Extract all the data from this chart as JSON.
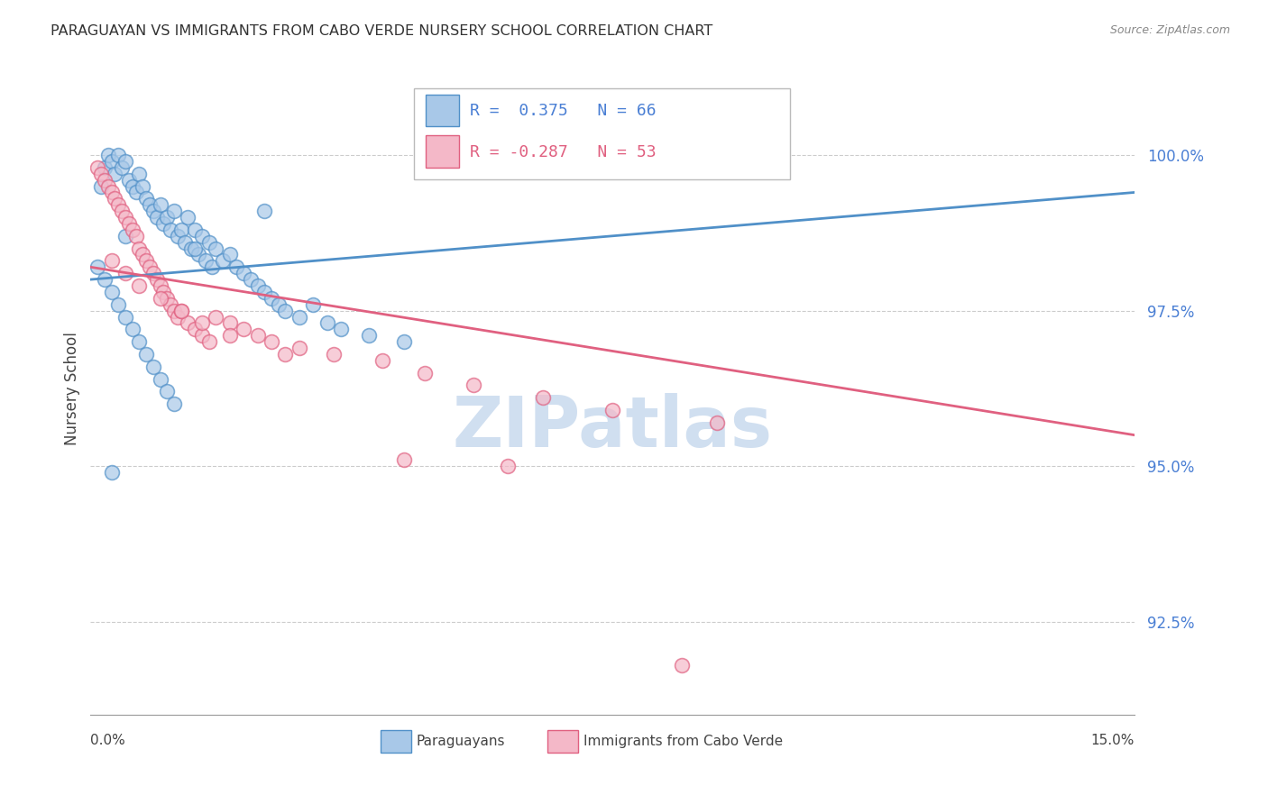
{
  "title": "PARAGUAYAN VS IMMIGRANTS FROM CABO VERDE NURSERY SCHOOL CORRELATION CHART",
  "source": "Source: ZipAtlas.com",
  "ylabel": "Nursery School",
  "ytick_values": [
    92.5,
    95.0,
    97.5,
    100.0
  ],
  "xlim": [
    0.0,
    15.0
  ],
  "ylim": [
    91.0,
    101.5
  ],
  "legend_blue_r": "0.375",
  "legend_blue_n": "66",
  "legend_pink_r": "-0.287",
  "legend_pink_n": "53",
  "blue_face_color": "#a8c8e8",
  "blue_edge_color": "#5090c8",
  "pink_face_color": "#f4b8c8",
  "pink_edge_color": "#e06080",
  "blue_line_color": "#5090c8",
  "pink_line_color": "#e06080",
  "watermark": "ZIPatlas",
  "watermark_color": "#d0dff0",
  "blue_scatter_x": [
    0.15,
    0.2,
    0.25,
    0.3,
    0.35,
    0.4,
    0.45,
    0.5,
    0.55,
    0.6,
    0.65,
    0.7,
    0.75,
    0.8,
    0.85,
    0.9,
    0.95,
    1.0,
    1.05,
    1.1,
    1.15,
    1.2,
    1.25,
    1.3,
    1.35,
    1.4,
    1.45,
    1.5,
    1.55,
    1.6,
    1.65,
    1.7,
    1.75,
    1.8,
    1.9,
    2.0,
    2.1,
    2.2,
    2.3,
    2.4,
    2.5,
    2.6,
    2.7,
    2.8,
    3.0,
    3.2,
    3.4,
    3.6,
    4.0,
    4.5,
    0.1,
    0.2,
    0.3,
    0.4,
    0.5,
    0.6,
    0.7,
    0.8,
    0.9,
    1.0,
    1.1,
    1.2,
    0.5,
    1.5,
    2.5,
    0.3
  ],
  "blue_scatter_y": [
    99.5,
    99.8,
    100.0,
    99.9,
    99.7,
    100.0,
    99.8,
    99.9,
    99.6,
    99.5,
    99.4,
    99.7,
    99.5,
    99.3,
    99.2,
    99.1,
    99.0,
    99.2,
    98.9,
    99.0,
    98.8,
    99.1,
    98.7,
    98.8,
    98.6,
    99.0,
    98.5,
    98.8,
    98.4,
    98.7,
    98.3,
    98.6,
    98.2,
    98.5,
    98.3,
    98.4,
    98.2,
    98.1,
    98.0,
    97.9,
    97.8,
    97.7,
    97.6,
    97.5,
    97.4,
    97.6,
    97.3,
    97.2,
    97.1,
    97.0,
    98.2,
    98.0,
    97.8,
    97.6,
    97.4,
    97.2,
    97.0,
    96.8,
    96.6,
    96.4,
    96.2,
    96.0,
    98.7,
    98.5,
    99.1,
    94.9
  ],
  "pink_scatter_x": [
    0.1,
    0.15,
    0.2,
    0.25,
    0.3,
    0.35,
    0.4,
    0.45,
    0.5,
    0.55,
    0.6,
    0.65,
    0.7,
    0.75,
    0.8,
    0.85,
    0.9,
    0.95,
    1.0,
    1.05,
    1.1,
    1.15,
    1.2,
    1.25,
    1.3,
    1.4,
    1.5,
    1.6,
    1.7,
    1.8,
    2.0,
    2.2,
    2.4,
    2.6,
    3.0,
    3.5,
    4.2,
    4.8,
    5.5,
    6.5,
    7.5,
    9.0,
    0.3,
    0.5,
    0.7,
    1.0,
    1.3,
    1.6,
    2.0,
    2.8,
    4.5,
    6.0,
    8.5
  ],
  "pink_scatter_y": [
    99.8,
    99.7,
    99.6,
    99.5,
    99.4,
    99.3,
    99.2,
    99.1,
    99.0,
    98.9,
    98.8,
    98.7,
    98.5,
    98.4,
    98.3,
    98.2,
    98.1,
    98.0,
    97.9,
    97.8,
    97.7,
    97.6,
    97.5,
    97.4,
    97.5,
    97.3,
    97.2,
    97.1,
    97.0,
    97.4,
    97.3,
    97.2,
    97.1,
    97.0,
    96.9,
    96.8,
    96.7,
    96.5,
    96.3,
    96.1,
    95.9,
    95.7,
    98.3,
    98.1,
    97.9,
    97.7,
    97.5,
    97.3,
    97.1,
    96.8,
    95.1,
    95.0,
    91.8
  ],
  "blue_trendline_x": [
    0.0,
    15.0
  ],
  "blue_trendline_y": [
    98.0,
    99.4
  ],
  "pink_trendline_x": [
    0.0,
    15.0
  ],
  "pink_trendline_y": [
    98.2,
    95.5
  ]
}
